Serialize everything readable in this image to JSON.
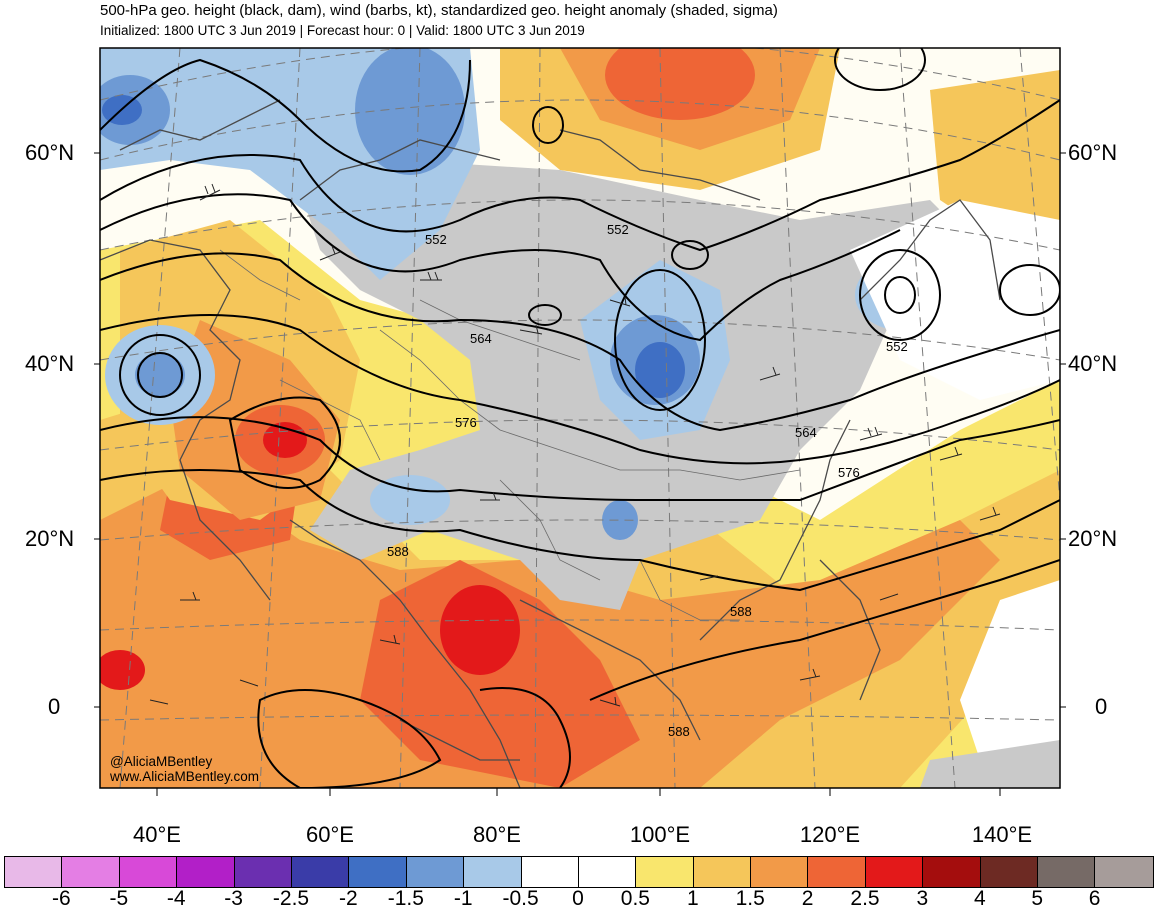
{
  "header": {
    "title": "500-hPa geo. height (black, dam), wind (barbs, kt), standardized geo. height anomaly (shaded, sigma)",
    "subtitle": "Initialized: 1800 UTC 3 Jun 2019 | Forecast hour: 0 | Valid: 1800 UTC 3 Jun 2019"
  },
  "map": {
    "lat_labels": [
      "60°N",
      "40°N",
      "20°N",
      "0"
    ],
    "lon_labels": [
      "40°E",
      "60°E",
      "80°E",
      "100°E",
      "120°E",
      "140°E"
    ],
    "contour_labels": [
      "552",
      "552",
      "552",
      "564",
      "564",
      "576",
      "576",
      "588",
      "588",
      "588"
    ],
    "credit_handle": "@AliciaMBentley",
    "credit_site": "www.AliciaMBentley.com"
  },
  "colorbar": {
    "colors": [
      "#e8b9e8",
      "#e47ee4",
      "#d849d8",
      "#b21fc8",
      "#6b2fb0",
      "#3a3ca8",
      "#3f6fc4",
      "#6e9ad4",
      "#a8c9e8",
      "#ffffff",
      "#ffffff",
      "#f9e66d",
      "#f5c65a",
      "#f29a48",
      "#ee6536",
      "#e3191a",
      "#a40d0d",
      "#6d2a23",
      "#766a66",
      "#a69c9a"
    ],
    "labels": [
      "-6",
      "-5",
      "-4",
      "-3",
      "-2.5",
      "-2",
      "-1.5",
      "-1",
      "-0.5",
      "0",
      "0.5",
      "1",
      "1.5",
      "2",
      "2.5",
      "3",
      "4",
      "5",
      "6"
    ]
  }
}
